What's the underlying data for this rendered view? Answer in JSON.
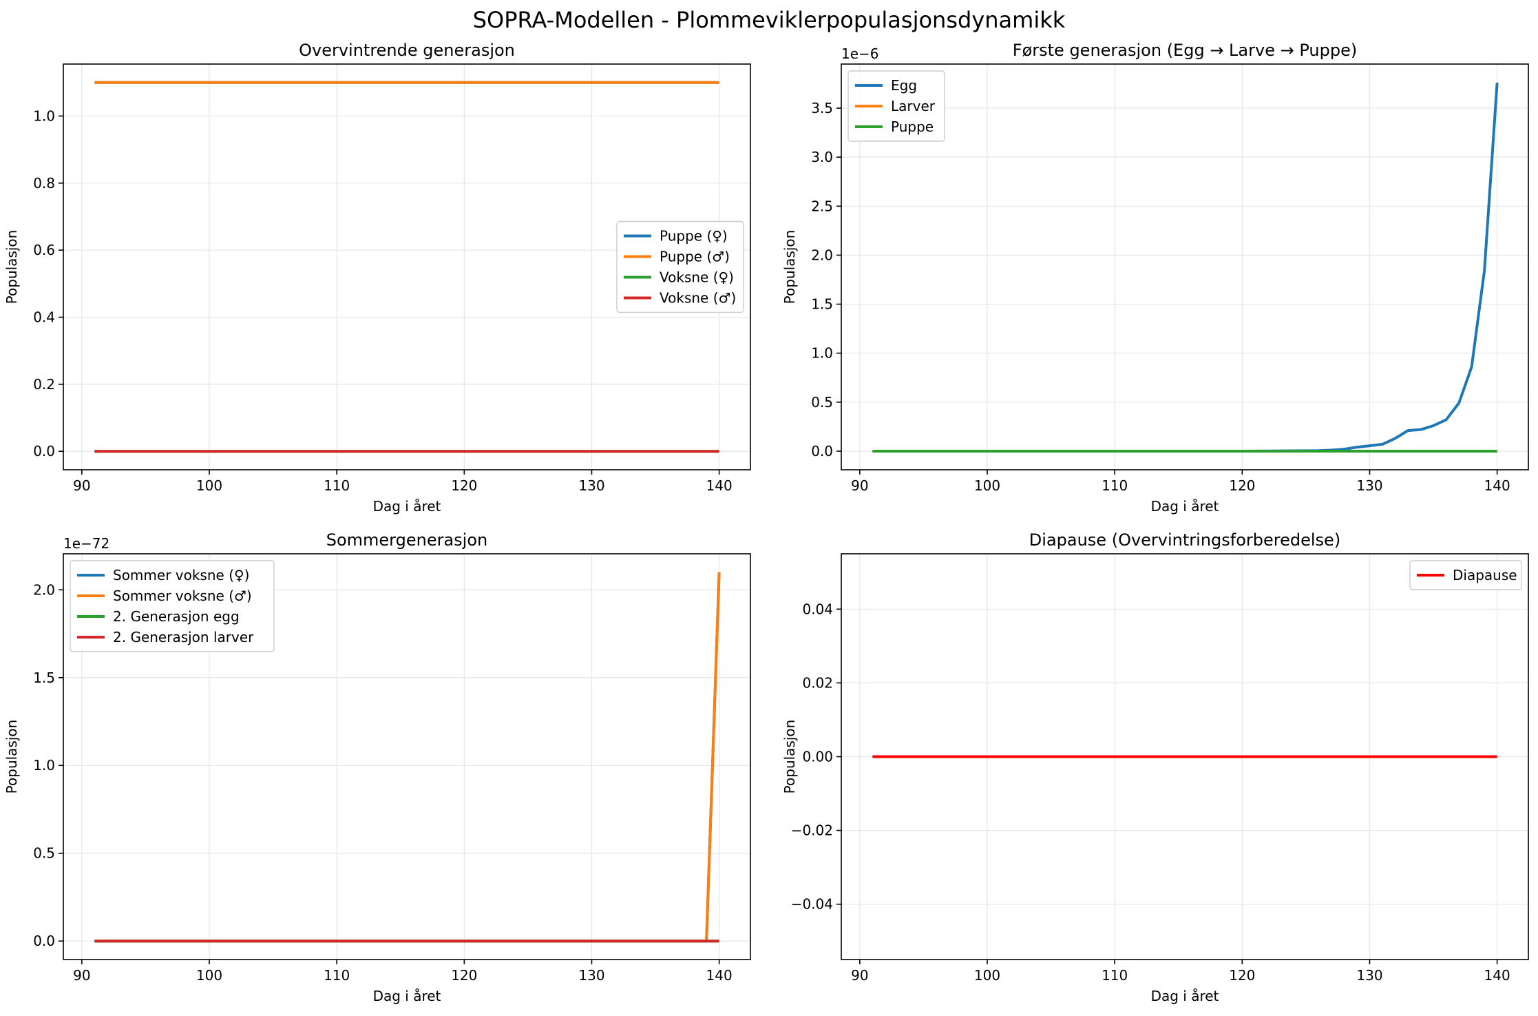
{
  "figure": {
    "title": "SOPRA-Modellen - Plommeviklerpopulasjonsdynamikk"
  },
  "chart_data": [
    {
      "type": "line",
      "title": "Overvintrende generasjon",
      "xlabel": "Dag i året",
      "ylabel": "Populasjon",
      "xlim": [
        88.55,
        142.45
      ],
      "ylim": [
        -0.055,
        1.155
      ],
      "xticks": [
        90,
        100,
        110,
        120,
        130,
        140
      ],
      "yticks": [
        0.0,
        0.2,
        0.4,
        0.6,
        0.8,
        1.0
      ],
      "ytick_labels": [
        "0.0",
        "0.2",
        "0.4",
        "0.6",
        "0.8",
        "1.0"
      ],
      "offset_label": "",
      "grid": true,
      "legend": "center-right",
      "series": [
        {
          "name": "Puppe (♀)",
          "color": "#1f77b4",
          "x": [
            91,
            140
          ],
          "y": [
            1.1,
            1.1
          ]
        },
        {
          "name": "Puppe (♂)",
          "color": "#ff7f0e",
          "x": [
            91,
            140
          ],
          "y": [
            1.1,
            1.1
          ]
        },
        {
          "name": "Voksne (♀)",
          "color": "#2ca02c",
          "x": [
            91,
            140
          ],
          "y": [
            0.0,
            0.0
          ]
        },
        {
          "name": "Voksne (♂)",
          "color": "#d62728",
          "x": [
            91,
            140
          ],
          "y": [
            0.0,
            0.0
          ]
        }
      ]
    },
    {
      "type": "line",
      "title": "Første generasjon (Egg → Larve → Puppe)",
      "xlabel": "Dag i året",
      "ylabel": "Populasjon",
      "xlim": [
        88.55,
        142.45
      ],
      "ylim": [
        -0.19,
        3.95
      ],
      "xticks": [
        90,
        100,
        110,
        120,
        130,
        140
      ],
      "yticks": [
        0.0,
        0.5,
        1.0,
        1.5,
        2.0,
        2.5,
        3.0,
        3.5
      ],
      "ytick_labels": [
        "0.0",
        "0.5",
        "1.0",
        "1.5",
        "2.0",
        "2.5",
        "3.0",
        "3.5"
      ],
      "offset_label": "1e−6",
      "grid": true,
      "legend": "upper-left",
      "series": [
        {
          "name": "Egg",
          "color": "#1f77b4",
          "x": [
            91,
            120,
            124,
            126,
            127,
            128,
            129,
            130,
            131,
            132,
            133,
            134,
            135,
            136,
            137,
            138,
            139,
            140
          ],
          "y": [
            0,
            0,
            0.003,
            0.005,
            0.01,
            0.02,
            0.04,
            0.055,
            0.07,
            0.13,
            0.21,
            0.22,
            0.26,
            0.32,
            0.49,
            0.86,
            1.84,
            3.76
          ]
        },
        {
          "name": "Larver",
          "color": "#ff7f0e",
          "x": [
            91,
            140
          ],
          "y": [
            0,
            0
          ]
        },
        {
          "name": "Puppe",
          "color": "#2ca02c",
          "x": [
            91,
            140
          ],
          "y": [
            0,
            0
          ]
        }
      ]
    },
    {
      "type": "line",
      "title": "Sommergenerasjon",
      "xlabel": "Dag i året",
      "ylabel": "Populasjon",
      "xlim": [
        88.55,
        142.45
      ],
      "ylim": [
        -0.105,
        2.205
      ],
      "xticks": [
        90,
        100,
        110,
        120,
        130,
        140
      ],
      "yticks": [
        0.0,
        0.5,
        1.0,
        1.5,
        2.0
      ],
      "ytick_labels": [
        "0.0",
        "0.5",
        "1.0",
        "1.5",
        "2.0"
      ],
      "offset_label": "1e−72",
      "grid": true,
      "legend": "upper-left",
      "series": [
        {
          "name": "Sommer voksne (♀)",
          "color": "#1f77b4",
          "x": [
            91,
            139,
            140
          ],
          "y": [
            0,
            0,
            2.1
          ]
        },
        {
          "name": "Sommer voksne (♂)",
          "color": "#ff7f0e",
          "x": [
            91,
            139,
            140
          ],
          "y": [
            0,
            0,
            2.1
          ]
        },
        {
          "name": "2. Generasjon egg",
          "color": "#2ca02c",
          "x": [
            91,
            140
          ],
          "y": [
            0,
            0
          ]
        },
        {
          "name": "2. Generasjon larver",
          "color": "#d62728",
          "x": [
            91,
            140
          ],
          "y": [
            0,
            0
          ]
        }
      ]
    },
    {
      "type": "line",
      "title": "Diapause (Overvintringsforberedelse)",
      "xlabel": "Dag i året",
      "ylabel": "Populasjon",
      "xlim": [
        88.55,
        142.45
      ],
      "ylim": [
        -0.055,
        0.055
      ],
      "xticks": [
        90,
        100,
        110,
        120,
        130,
        140
      ],
      "yticks": [
        -0.04,
        -0.02,
        0.0,
        0.02,
        0.04
      ],
      "ytick_labels": [
        "−0.04",
        "−0.02",
        "0.00",
        "0.02",
        "0.04"
      ],
      "offset_label": "",
      "grid": true,
      "legend": "upper-right",
      "series": [
        {
          "name": "Diapause",
          "color": "#ff0000",
          "x": [
            91,
            140
          ],
          "y": [
            0,
            0
          ]
        }
      ]
    }
  ]
}
